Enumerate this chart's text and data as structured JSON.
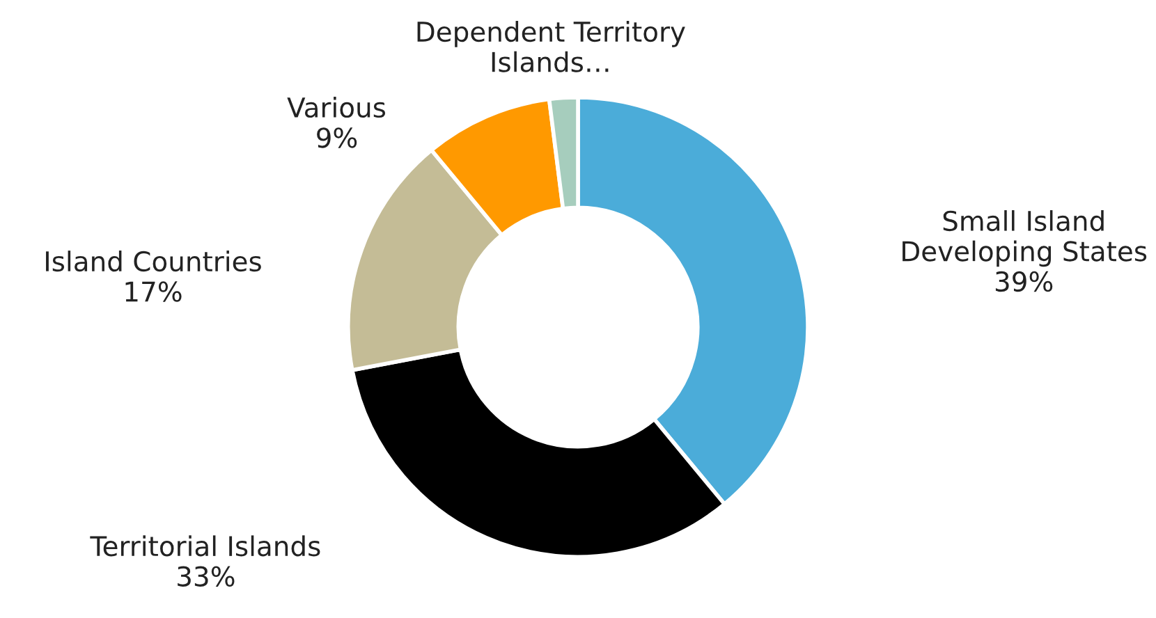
{
  "chart_data": {
    "type": "donut",
    "categories": [
      "Small Island\nDeveloping States",
      "Territorial Islands",
      "Island Countries",
      "Various",
      "Dependent Territory\nIslands…"
    ],
    "values": [
      39,
      33,
      17,
      9,
      2
    ],
    "value_labels": [
      "39%",
      "33%",
      "17%",
      "9%",
      null
    ],
    "colors": [
      "#4bacd9",
      "#000000",
      "#c4bc96",
      "#ff9900",
      "#a6cdbd"
    ],
    "legend": false
  }
}
